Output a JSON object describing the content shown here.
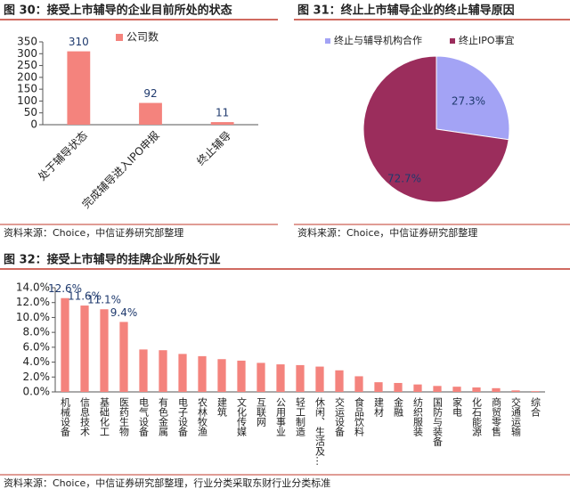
{
  "chart_data": [
    {
      "type": "bar",
      "title": "图 30：接受上市辅导的企业目前所处的状态",
      "source": "资料来源：Choice，中信证券研究部整理",
      "categories": [
        "处于辅导状态",
        "完成辅导进入IPO申报",
        "终止辅导"
      ],
      "series": [
        {
          "name": "公司数",
          "color": "#f4837d",
          "values": [
            310,
            92,
            11
          ]
        }
      ],
      "ylim": [
        0,
        350
      ],
      "yticks": [
        0,
        50,
        100,
        150,
        200,
        250,
        300,
        350
      ],
      "legend": "top"
    },
    {
      "type": "pie",
      "title": "图 31：终止上市辅导企业的终止辅导原因",
      "source": "资料来源：Choice，中信证券研究部整理",
      "categories": [
        "终止与辅导机构合作",
        "终止IPO事宜"
      ],
      "values": [
        27.3,
        72.7
      ],
      "value_labels": [
        "27.3%",
        "72.7%"
      ],
      "colors": [
        "#a3a3f5",
        "#9b2d5c"
      ],
      "legend": "top"
    },
    {
      "type": "bar",
      "title": "图 32：接受上市辅导的挂牌企业所处行业",
      "source": "资料来源：Choice，中信证券研究部整理，行业分类采取东财行业分类标准",
      "categories": [
        "机械设备",
        "信息技术",
        "基础化工",
        "医药生物",
        "电气设备",
        "有色金属",
        "电子设备",
        "农林牧渔",
        "建筑",
        "文化传媒",
        "互联网",
        "公用事业",
        "轻工制造",
        "休闲、生活及…",
        "交运设备",
        "食品饮料",
        "建材",
        "金融",
        "纺织服装",
        "国防与装备",
        "家电",
        "化石能源",
        "商贸零售",
        "交通运输",
        "综合"
      ],
      "series": [
        {
          "color": "#f4837d",
          "values": [
            12.6,
            11.6,
            11.1,
            9.4,
            5.7,
            5.6,
            5.1,
            4.8,
            4.4,
            4.2,
            3.9,
            3.7,
            3.6,
            3.4,
            2.9,
            2.1,
            1.3,
            1.2,
            1.0,
            0.8,
            0.7,
            0.6,
            0.5,
            0.2,
            0.1
          ],
          "value_labels": [
            "12.6%",
            "11.6%",
            "11.1%",
            "9.4%",
            null,
            null,
            null,
            null,
            null,
            null,
            null,
            null,
            null,
            null,
            null,
            null,
            null,
            null,
            null,
            null,
            null,
            null,
            null,
            null,
            null
          ]
        }
      ],
      "ylim": [
        0,
        14
      ],
      "yticks": [
        {
          "value": 0,
          "label": "0.0%"
        },
        {
          "value": 2,
          "label": "2.0%"
        },
        {
          "value": 4,
          "label": "4.0%"
        },
        {
          "value": 6,
          "label": "6.0%"
        },
        {
          "value": 8,
          "label": "8.0%"
        },
        {
          "value": 10,
          "label": "10.0%"
        },
        {
          "value": 12,
          "label": "12.0%"
        },
        {
          "value": 14,
          "label": "14.0%"
        }
      ]
    }
  ]
}
